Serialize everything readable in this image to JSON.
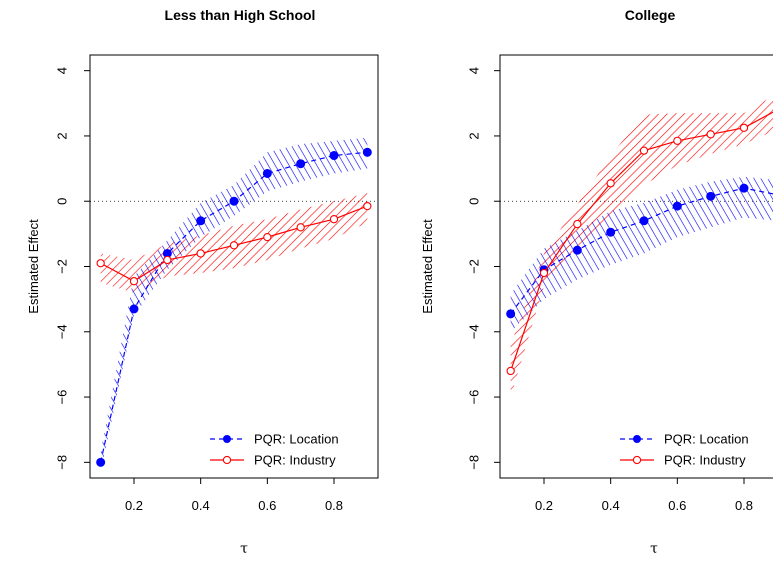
{
  "chart_data": [
    {
      "type": "line",
      "title": "Less than High School",
      "xlabel": "τ",
      "ylabel": "Estimated Effect",
      "xlim": [
        0.1,
        0.9
      ],
      "ylim": [
        -8,
        4
      ],
      "x_ticks": [
        "0.2",
        "0.4",
        "0.6",
        "0.8"
      ],
      "y_ticks": [
        "−8",
        "−6",
        "−4",
        "−2",
        "0",
        "2",
        "4"
      ],
      "reference_line": 0,
      "legend_position": "bottom-right",
      "x": [
        0.1,
        0.2,
        0.3,
        0.4,
        0.5,
        0.6,
        0.7,
        0.8,
        0.9
      ],
      "series": [
        {
          "name": "PQR: Location",
          "color": "#0000ff",
          "line_style": "dashed",
          "marker": "filled-circle",
          "values": [
            -8.0,
            -3.3,
            -1.6,
            -0.6,
            0.0,
            0.85,
            1.15,
            1.4,
            1.5
          ],
          "lower": [
            -8.3,
            -3.5,
            -2.1,
            -1.1,
            -0.45,
            0.3,
            0.6,
            0.85,
            1.0
          ],
          "upper": [
            -7.7,
            -2.3,
            -1.2,
            -0.05,
            0.5,
            1.5,
            1.75,
            1.85,
            1.95
          ]
        },
        {
          "name": "PQR: Industry",
          "color": "#ff0000",
          "line_style": "solid",
          "marker": "open-circle",
          "values": [
            -1.9,
            -2.45,
            -1.8,
            -1.6,
            -1.35,
            -1.1,
            -0.8,
            -0.55,
            -0.15
          ],
          "lower": [
            -2.5,
            -2.8,
            -2.3,
            -2.2,
            -2.05,
            -1.8,
            -1.45,
            -1.15,
            -0.65
          ],
          "upper": [
            -1.6,
            -1.8,
            -1.3,
            -1.05,
            -0.75,
            -0.55,
            -0.25,
            0.0,
            0.25
          ]
        }
      ]
    },
    {
      "type": "line",
      "title": "College",
      "xlabel": "τ",
      "ylabel": "Estimated Effect",
      "xlim": [
        0.1,
        0.9
      ],
      "ylim": [
        -8,
        4
      ],
      "x_ticks": [
        "0.2",
        "0.4",
        "0.6",
        "0.8"
      ],
      "y_ticks": [
        "−8",
        "−6",
        "−4",
        "−2",
        "0",
        "2",
        "4"
      ],
      "reference_line": 0,
      "legend_position": "bottom-right",
      "x": [
        0.1,
        0.2,
        0.3,
        0.4,
        0.5,
        0.6,
        0.7,
        0.8,
        0.9
      ],
      "series": [
        {
          "name": "PQR: Location",
          "color": "#0000ff",
          "line_style": "dashed",
          "marker": "filled-circle",
          "values": [
            -3.45,
            -2.1,
            -1.5,
            -0.95,
            -0.6,
            -0.15,
            0.15,
            0.4,
            0.2
          ],
          "lower": [
            -4.0,
            -3.0,
            -2.4,
            -1.95,
            -1.6,
            -1.1,
            -0.8,
            -0.5,
            -0.6
          ],
          "upper": [
            -2.85,
            -1.45,
            -0.9,
            -0.3,
            -0.05,
            0.35,
            0.6,
            0.75,
            0.65
          ]
        },
        {
          "name": "PQR: Industry",
          "color": "#ff0000",
          "line_style": "solid",
          "marker": "open-circle",
          "values": [
            -5.2,
            -2.2,
            -0.7,
            0.55,
            1.55,
            1.85,
            2.05,
            2.25,
            2.8
          ],
          "lower": [
            -6.0,
            -2.6,
            -1.4,
            -0.4,
            0.5,
            1.1,
            1.45,
            1.75,
            2.2
          ],
          "upper": [
            -4.4,
            -1.6,
            -0.1,
            1.4,
            2.65,
            2.7,
            2.7,
            2.7,
            3.3
          ]
        }
      ]
    }
  ]
}
